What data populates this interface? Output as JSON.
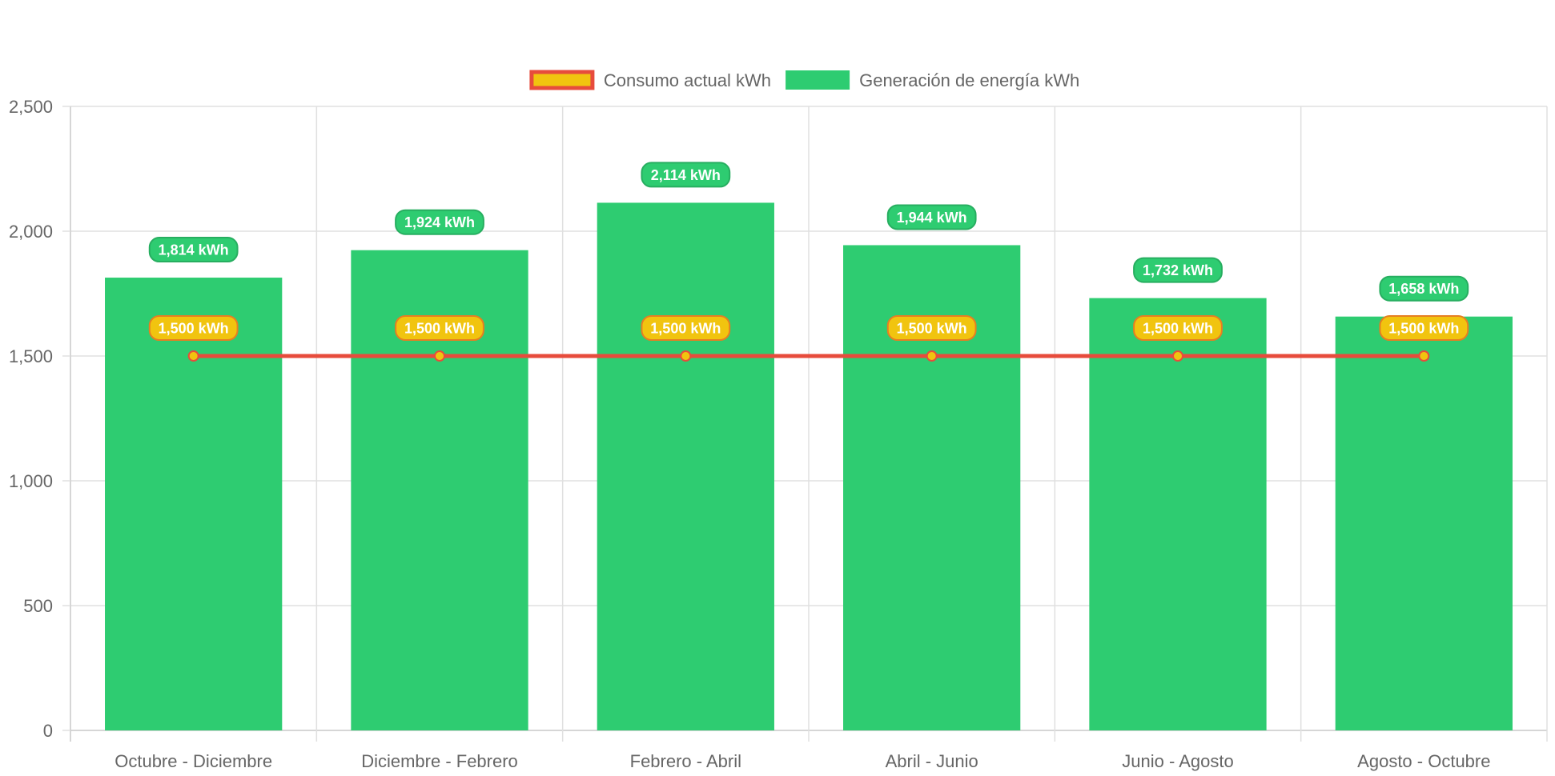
{
  "chart_data": {
    "type": "bar",
    "categories": [
      "Octubre - Diciembre",
      "Diciembre - Febrero",
      "Febrero - Abril",
      "Abril - Junio",
      "Junio - Agosto",
      "Agosto - Octubre"
    ],
    "series": [
      {
        "name": "Generación de energía kWh",
        "type": "bar",
        "values": [
          1814,
          1924,
          2114,
          1944,
          1732,
          1658
        ],
        "data_labels": [
          "1,814 kWh",
          "1,924 kWh",
          "2,114 kWh",
          "1,944 kWh",
          "1,732 kWh",
          "1,658 kWh"
        ],
        "color": "#2ecc71",
        "label_border_color": "#27ae60"
      },
      {
        "name": "Consumo actual kWh",
        "type": "line",
        "values": [
          1500,
          1500,
          1500,
          1500,
          1500,
          1500
        ],
        "data_labels": [
          "1,500 kWh",
          "1,500 kWh",
          "1,500 kWh",
          "1,500 kWh",
          "1,500 kWh",
          "1,500 kWh"
        ],
        "color": "#f1c40f",
        "border_color": "#e74c3c"
      }
    ],
    "legend_order": [
      "Consumo actual kWh",
      "Generación de energía kWh"
    ],
    "legend_position": "top-center",
    "ylim": [
      0,
      2500
    ],
    "yticks": [
      0,
      500,
      1000,
      1500,
      2000,
      2500
    ],
    "ytick_labels": [
      "0",
      "500",
      "1,000",
      "1,500",
      "2,000",
      "2,500"
    ],
    "grid": true,
    "title": "",
    "xlabel": "",
    "ylabel": "",
    "colors": {
      "grid": "#e0e0e0",
      "axis": "#c8c8c8",
      "tick_text": "#666666"
    }
  }
}
